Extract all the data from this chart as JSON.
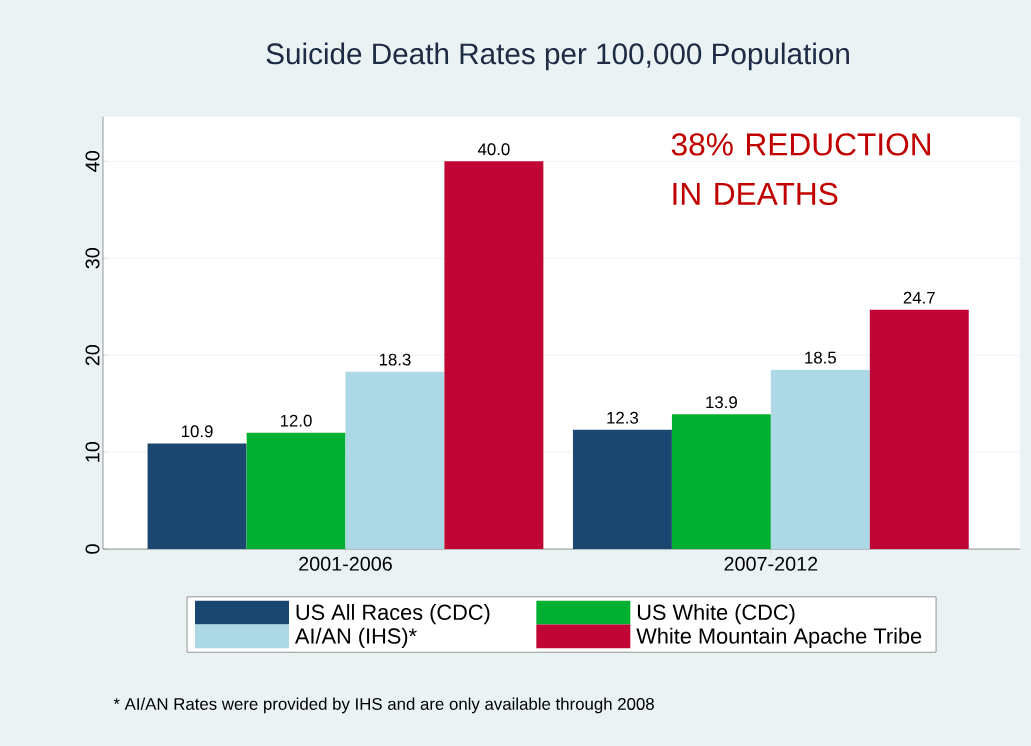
{
  "chart_data": {
    "type": "bar",
    "title": "Suicide Death Rates per 100,000 Population",
    "categories": [
      "2001-2006",
      "2007-2012"
    ],
    "series": [
      {
        "name": "US All Races (CDC)",
        "color": "#1a476f",
        "values": [
          10.9,
          12.3
        ],
        "value_labels": [
          "10.9",
          "12.3"
        ]
      },
      {
        "name": "US White (CDC)",
        "color": "#00b030",
        "values": [
          12.0,
          13.9
        ],
        "value_labels": [
          "12.0",
          "13.9"
        ]
      },
      {
        "name": "AI/AN (IHS)*",
        "color": "#add8e6",
        "values": [
          18.3,
          18.5
        ],
        "value_labels": [
          "18.3",
          "18.5"
        ]
      },
      {
        "name": "White Mountain Apache Tribe",
        "color": "#c10534",
        "values": [
          40.0,
          24.7
        ],
        "value_labels": [
          "40.0",
          "24.7"
        ]
      }
    ],
    "ylim": [
      0,
      44.6
    ],
    "yticks": [
      0,
      10,
      20,
      30,
      40
    ],
    "grid": "y",
    "legend": "bottom",
    "annotations": [
      "38% REDUCTION IN DEATHS",
      "* AI/AN Rates were provided by IHS and are only available through 2008"
    ]
  }
}
